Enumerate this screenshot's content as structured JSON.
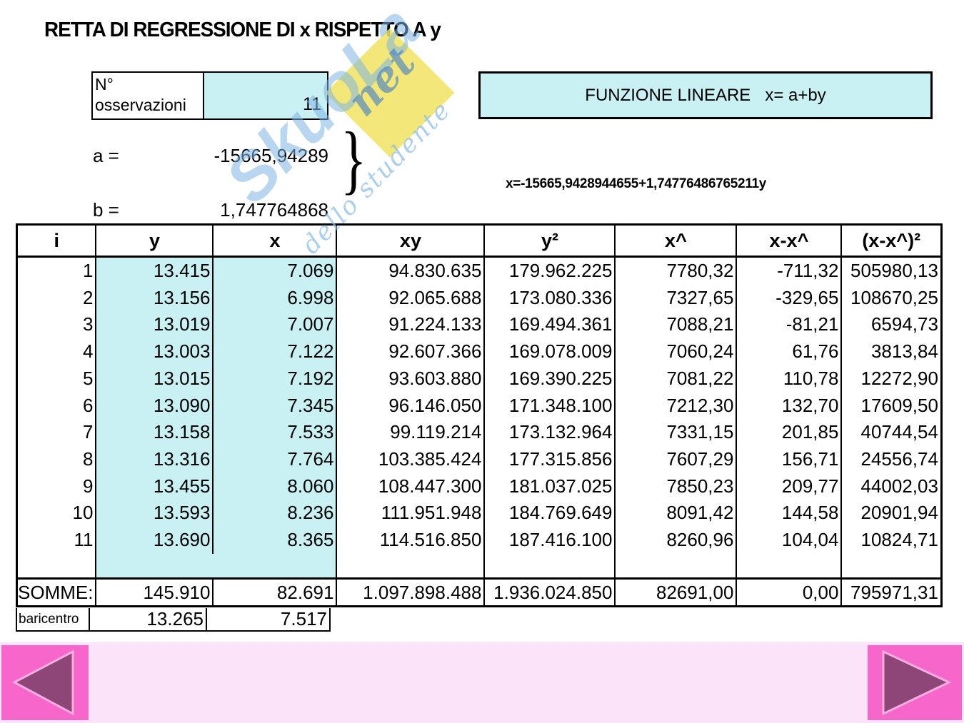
{
  "title": "RETTA DI REGRESSIONE DI x RISPETTO A y",
  "observations_box": {
    "label_line1": "N°",
    "label_line2": "osservazioni",
    "value": "11"
  },
  "coefficients": {
    "a_label": "a =",
    "a_value": "-15665,94289",
    "b_label": "b =",
    "b_value": "1,747764868",
    "brace": "}"
  },
  "function_box": {
    "text": "FUNZIONE LINEARE   x= a+by"
  },
  "equation": "x=-15665,9428944655+1,74776486765211y",
  "watermark": {
    "brand": "SkuoLa",
    "net": "net",
    "slogan": "dello studente"
  },
  "table": {
    "headers": [
      "i",
      "y",
      "x",
      "xy",
      "y²",
      "x^",
      "x-x^",
      "(x-x^)²"
    ],
    "rows": [
      [
        "1",
        "13.415",
        "7.069",
        "94.830.635",
        "179.962.225",
        "7780,32",
        "-711,32",
        "505980,13"
      ],
      [
        "2",
        "13.156",
        "6.998",
        "92.065.688",
        "173.080.336",
        "7327,65",
        "-329,65",
        "108670,25"
      ],
      [
        "3",
        "13.019",
        "7.007",
        "91.224.133",
        "169.494.361",
        "7088,21",
        "-81,21",
        "6594,73"
      ],
      [
        "4",
        "13.003",
        "7.122",
        "92.607.366",
        "169.078.009",
        "7060,24",
        "61,76",
        "3813,84"
      ],
      [
        "5",
        "13.015",
        "7.192",
        "93.603.880",
        "169.390.225",
        "7081,22",
        "110,78",
        "12272,90"
      ],
      [
        "6",
        "13.090",
        "7.345",
        "96.146.050",
        "171.348.100",
        "7212,30",
        "132,70",
        "17609,50"
      ],
      [
        "7",
        "13.158",
        "7.533",
        "99.119.214",
        "173.132.964",
        "7331,15",
        "201,85",
        "40744,54"
      ],
      [
        "8",
        "13.316",
        "7.764",
        "103.385.424",
        "177.315.856",
        "7607,29",
        "156,71",
        "24556,74"
      ],
      [
        "9",
        "13.455",
        "8.060",
        "108.447.300",
        "181.037.025",
        "7850,23",
        "209,77",
        "44002,03"
      ],
      [
        "10",
        "13.593",
        "8.236",
        "111.951.948",
        "184.769.649",
        "8091,42",
        "144,58",
        "20901,94"
      ],
      [
        "11",
        "13.690",
        "8.365",
        "114.516.850",
        "187.416.100",
        "8260,96",
        "104,04",
        "10824,71"
      ]
    ],
    "somme": {
      "label": "SOMME:",
      "values": [
        "145.910",
        "82.691",
        "1.097.898.488",
        "1.936.024.850",
        "82691,00",
        "0,00",
        "795971,31"
      ]
    },
    "baricentro": {
      "label": "baricentro",
      "values": [
        "13.265",
        "7.517"
      ]
    }
  },
  "navigation": {
    "prev": "previous-slide",
    "next": "next-slide"
  },
  "colors": {
    "cell_cyan": "#C9F0F3",
    "bar_pink": "#FBE3F9",
    "button_pink": "#F767CB",
    "triangle_fill": "#8D4677",
    "triangle_stroke": "#F6ADDF"
  }
}
